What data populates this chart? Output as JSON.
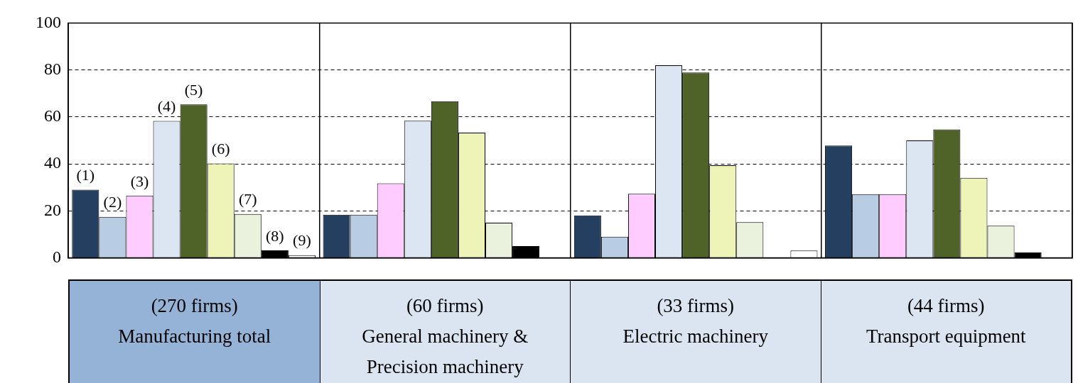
{
  "chart_data": {
    "type": "bar",
    "categories": [
      "(270 firms)\nManufacturing total",
      "(60 firms)\nGeneral machinery &\nPrecision machinery",
      "(33 firms)\nElectric machinery",
      "(44 firms)\nTransport equipment"
    ],
    "series": [
      {
        "name": "(1)",
        "color": "#243f60",
        "values": [
          29,
          18.4,
          18.1,
          47.8
        ]
      },
      {
        "name": "(2)",
        "color": "#b8cce4",
        "values": [
          17.5,
          18.4,
          9,
          27.1
        ]
      },
      {
        "name": "(3)",
        "color": "#ffccff",
        "values": [
          26.5,
          31.7,
          27.3,
          27.1
        ]
      },
      {
        "name": "(4)",
        "color": "#dce6f2",
        "values": [
          58.3,
          58.4,
          82,
          50
        ]
      },
      {
        "name": "(5)",
        "color": "#4f6228",
        "values": [
          65.3,
          66.7,
          78.9,
          54.7
        ]
      },
      {
        "name": "(6)",
        "color": "#eef3b8",
        "values": [
          40.2,
          53.3,
          39.4,
          34.1
        ]
      },
      {
        "name": "(7)",
        "color": "#eaf1dd",
        "values": [
          18.7,
          15,
          15.2,
          13.7
        ]
      },
      {
        "name": "(8)",
        "color": "#000000",
        "values": [
          3.2,
          5,
          0,
          2.3
        ]
      },
      {
        "name": "(9)",
        "color": "#ffffff",
        "values": [
          1.2,
          0,
          3.1,
          0
        ]
      }
    ],
    "ylim": [
      0,
      100
    ],
    "yticks": [
      0,
      20,
      40,
      60,
      80,
      100
    ],
    "grid": true,
    "legend": false
  }
}
